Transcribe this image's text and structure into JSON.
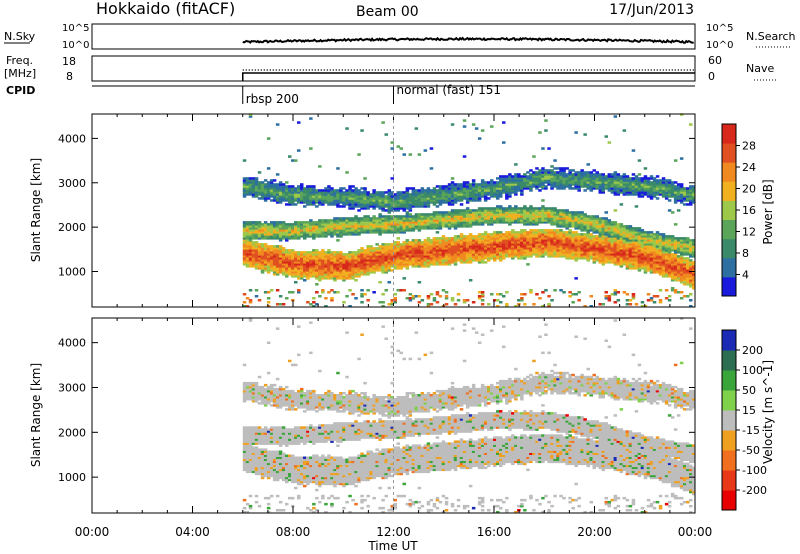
{
  "header": {
    "station": "Hokkaido (fitACF)",
    "beam": "Beam 00",
    "date": "17/Jun/2013"
  },
  "sky_panel": {
    "left_label": "N.Sky",
    "left_ticks": [
      "10^5",
      "10^0"
    ],
    "right_ticks": [
      "10^5",
      "10^0"
    ],
    "right_label": "N.Search"
  },
  "freq_panel": {
    "left_label_1": "Freq.",
    "left_label_2": "[MHz]",
    "left_ticks": [
      "18",
      "8"
    ],
    "right_ticks": [
      "60",
      "0"
    ],
    "right_label": "Nave"
  },
  "cpid": {
    "label": "CPID",
    "modes": [
      {
        "name": "rbsp 200",
        "start_hour": 6.0
      },
      {
        "name": "normal (fast) 151",
        "start_hour": 12.0
      }
    ]
  },
  "chart_data": [
    {
      "type": "heatmap",
      "title": "",
      "xlabel": "Time UT",
      "ylabel": "Slant Range [km]",
      "x_ticks": [
        "00:00",
        "04:00",
        "08:00",
        "12:00",
        "16:00",
        "20:00",
        "00:00"
      ],
      "xlim_hours": [
        0,
        24
      ],
      "y_ticks": [
        "1000",
        "2000",
        "3000",
        "4000"
      ],
      "ylim": [
        200,
        4550
      ],
      "colorbar": {
        "label": "Power [dB]",
        "ticks": [
          "4",
          "8",
          "12",
          "16",
          "20",
          "24",
          "28"
        ],
        "range": [
          0,
          30
        ],
        "colors": [
          "#1a1adc",
          "#2c6fa0",
          "#3a8a6a",
          "#5aa55a",
          "#9ec84a",
          "#f0b020",
          "#f08a20",
          "#e05020",
          "#d8281c"
        ]
      },
      "data_start_hour": 6.0,
      "bands": [
        {
          "name": "main",
          "range_km": [
            [
              6,
              1400
            ],
            [
              8,
              1150
            ],
            [
              10,
              1100
            ],
            [
              12,
              1350
            ],
            [
              14,
              1450
            ],
            [
              16,
              1550
            ],
            [
              18,
              1650
            ],
            [
              20,
              1500
            ],
            [
              22,
              1300
            ],
            [
              24,
              900
            ]
          ],
          "width_km": 550,
          "level": "strong"
        },
        {
          "name": "upper",
          "range_km": [
            [
              6,
              1900
            ],
            [
              8,
              1900
            ],
            [
              10,
              2000
            ],
            [
              12,
              2050
            ],
            [
              14,
              2150
            ],
            [
              16,
              2250
            ],
            [
              18,
              2250
            ],
            [
              20,
              2050
            ],
            [
              22,
              1700
            ],
            [
              24,
              1500
            ]
          ],
          "width_km": 350,
          "level": "medium"
        },
        {
          "name": "far",
          "range_km": [
            [
              6,
              2900
            ],
            [
              8,
              2700
            ],
            [
              10,
              2650
            ],
            [
              12,
              2550
            ],
            [
              14,
              2700
            ],
            [
              16,
              2850
            ],
            [
              18,
              3100
            ],
            [
              20,
              3000
            ],
            [
              22,
              2900
            ],
            [
              24,
              2700
            ]
          ],
          "width_km": 450,
          "level": "weak"
        }
      ]
    },
    {
      "type": "heatmap",
      "title": "",
      "xlabel": "Time UT",
      "ylabel": "Slant Range [km]",
      "x_ticks": [
        "00:00",
        "04:00",
        "08:00",
        "12:00",
        "16:00",
        "20:00",
        "00:00"
      ],
      "xlim_hours": [
        0,
        24
      ],
      "y_ticks": [
        "1000",
        "2000",
        "3000",
        "4000"
      ],
      "ylim": [
        200,
        4550
      ],
      "colorbar": {
        "label": "Velocity [m s^-1]",
        "ticks": [
          "200",
          "100",
          "50",
          "15",
          "-15",
          "-50",
          "-100",
          "-200"
        ],
        "range": [
          -250,
          250
        ],
        "colors": [
          "#1a2ab4",
          "#2c6f50",
          "#3aa53a",
          "#7fd04a",
          "#bdbdbd",
          "#f0a020",
          "#f07020",
          "#e83818",
          "#e80000"
        ]
      },
      "dominant": "ground scatter (grey) near 0 m/s, sparse orange and green patches"
    }
  ]
}
